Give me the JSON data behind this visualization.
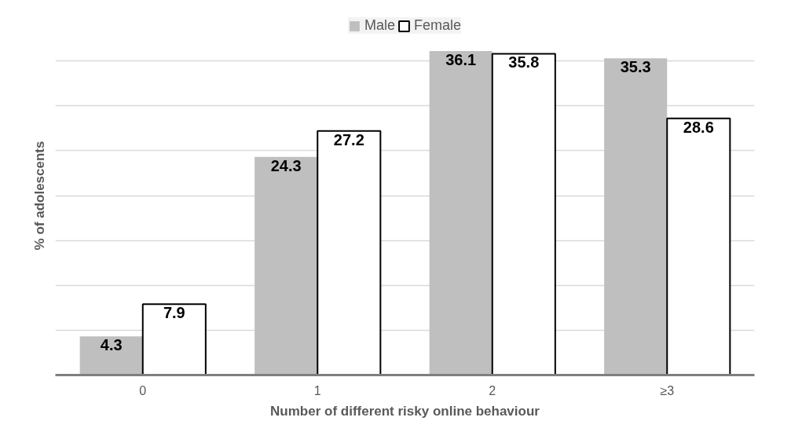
{
  "chart_data": {
    "type": "bar",
    "xlabel": "Number of different risky online behaviour",
    "ylabel": "% of adolescents",
    "categories": [
      "0",
      "1",
      "2",
      "≥3"
    ],
    "series": [
      {
        "name": "Male",
        "color": "#bfbfbf",
        "values": [
          4.3,
          24.3,
          36.1,
          35.3
        ]
      },
      {
        "name": "Female",
        "color": "#ffffff",
        "values": [
          7.9,
          27.2,
          35.8,
          28.6
        ]
      }
    ],
    "ylim": [
      0,
      40
    ],
    "yticks": [
      {
        "value": 0,
        "label": null
      },
      {
        "value": 5,
        "label": null
      },
      {
        "value": 10,
        "label": null
      },
      {
        "value": 15,
        "label": null
      },
      {
        "value": 20,
        "label": null
      },
      {
        "value": 25,
        "label": null
      },
      {
        "value": 30,
        "label": null
      },
      {
        "value": 35,
        "label": null
      }
    ],
    "tick_labels": "x",
    "grid": "y",
    "legend": "top",
    "data_labels": true
  }
}
